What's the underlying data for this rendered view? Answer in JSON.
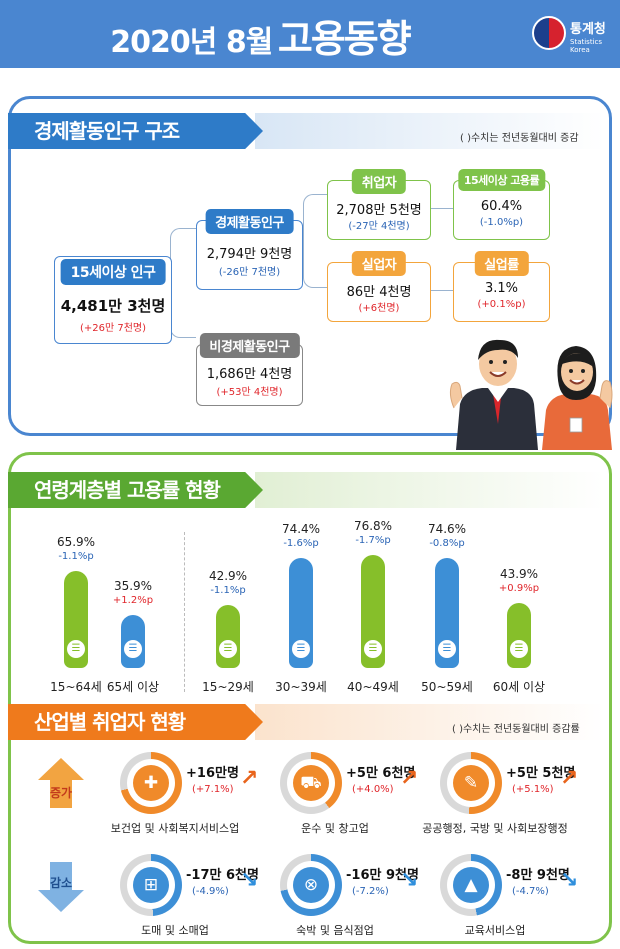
{
  "header": {
    "year_month": "2020년  8월",
    "title": "고용동향",
    "logo_name": "통계청",
    "logo_sub": "Statistics Korea"
  },
  "section1": {
    "title": "경제활동인구 구조",
    "note": "(  )수치는 전년동월대비 증감",
    "pop15": {
      "label": "15세이상 인구",
      "value": "4,481만 3천명",
      "change": "(+26만 7천명)"
    },
    "active": {
      "label": "경제활동인구",
      "value": "2,794만 9천명",
      "change": "(-26만 7천명)"
    },
    "inactive": {
      "label": "비경제활동인구",
      "value": "1,686만 4천명",
      "change": "(+53만 4천명)"
    },
    "employed": {
      "label": "취업자",
      "value": "2,708만 5천명",
      "change": "(-27만 4천명)"
    },
    "unemployed": {
      "label": "실업자",
      "value": "86만 4천명",
      "change": "(+6천명)"
    },
    "emp_rate": {
      "label": "15세이상 고용률",
      "value": "60.4%",
      "change": "(-1.0%p)"
    },
    "unemp_rate": {
      "label": "실업률",
      "value": "3.1%",
      "change": "(+0.1%p)"
    }
  },
  "section2": {
    "title": "연령계층별 고용률 현황",
    "bars": [
      {
        "label": "15~64세",
        "value": 65.9,
        "value_text": "65.9%",
        "change": "-1.1%p",
        "dir": "down",
        "color": "#86bf2a"
      },
      {
        "label": "65세 이상",
        "value": 35.9,
        "value_text": "35.9%",
        "change": "+1.2%p",
        "dir": "up",
        "color": "#3d8fd6"
      },
      {
        "label": "15~29세",
        "value": 42.9,
        "value_text": "42.9%",
        "change": "-1.1%p",
        "dir": "down",
        "color": "#86bf2a"
      },
      {
        "label": "30~39세",
        "value": 74.4,
        "value_text": "74.4%",
        "change": "-1.6%p",
        "dir": "down",
        "color": "#3d8fd6"
      },
      {
        "label": "40~49세",
        "value": 76.8,
        "value_text": "76.8%",
        "change": "-1.7%p",
        "dir": "down",
        "color": "#86bf2a"
      },
      {
        "label": "50~59세",
        "value": 74.6,
        "value_text": "74.6%",
        "change": "-0.8%p",
        "dir": "down",
        "color": "#3d8fd6"
      },
      {
        "label": "60세 이상",
        "value": 43.9,
        "value_text": "43.9%",
        "change": "+0.9%p",
        "dir": "up",
        "color": "#86bf2a"
      }
    ]
  },
  "section3": {
    "title": "산업별 취업자 현황",
    "note": "(  )수치는 전년동월대비 증감률",
    "increase_label": "증가",
    "decrease_label": "감소",
    "increase": [
      {
        "label": "보건업 및 사회복지서비스업",
        "value": "+16만명",
        "change": "(+7.1%)",
        "icon": "medical-kit-icon",
        "share": 0.71
      },
      {
        "label": "운수 및 창고업",
        "value": "+5만 6천명",
        "change": "(+4.0%)",
        "icon": "truck-icon",
        "share": 0.4
      },
      {
        "label": "공공행정, 국방 및 사회보장행정",
        "value": "+5만 5천명",
        "change": "(+5.1%)",
        "icon": "scroll-icon",
        "share": 0.51
      }
    ],
    "decrease": [
      {
        "label": "도매 및 소매업",
        "value": "-17만 6천명",
        "change": "(-4.9%)",
        "icon": "basket-icon",
        "share": 0.49
      },
      {
        "label": "숙박 및 음식점업",
        "value": "-16만 9천명",
        "change": "(-7.2%)",
        "icon": "dining-icon",
        "share": 0.72
      },
      {
        "label": "교육서비스업",
        "value": "-8만 9천명",
        "change": "(-4.7%)",
        "icon": "graduation-cap-icon",
        "share": 0.47
      }
    ]
  },
  "colors": {
    "blue": "#4a86d0",
    "green": "#7fc34a",
    "orange": "#ef7a1c",
    "red": "#e0262b"
  }
}
